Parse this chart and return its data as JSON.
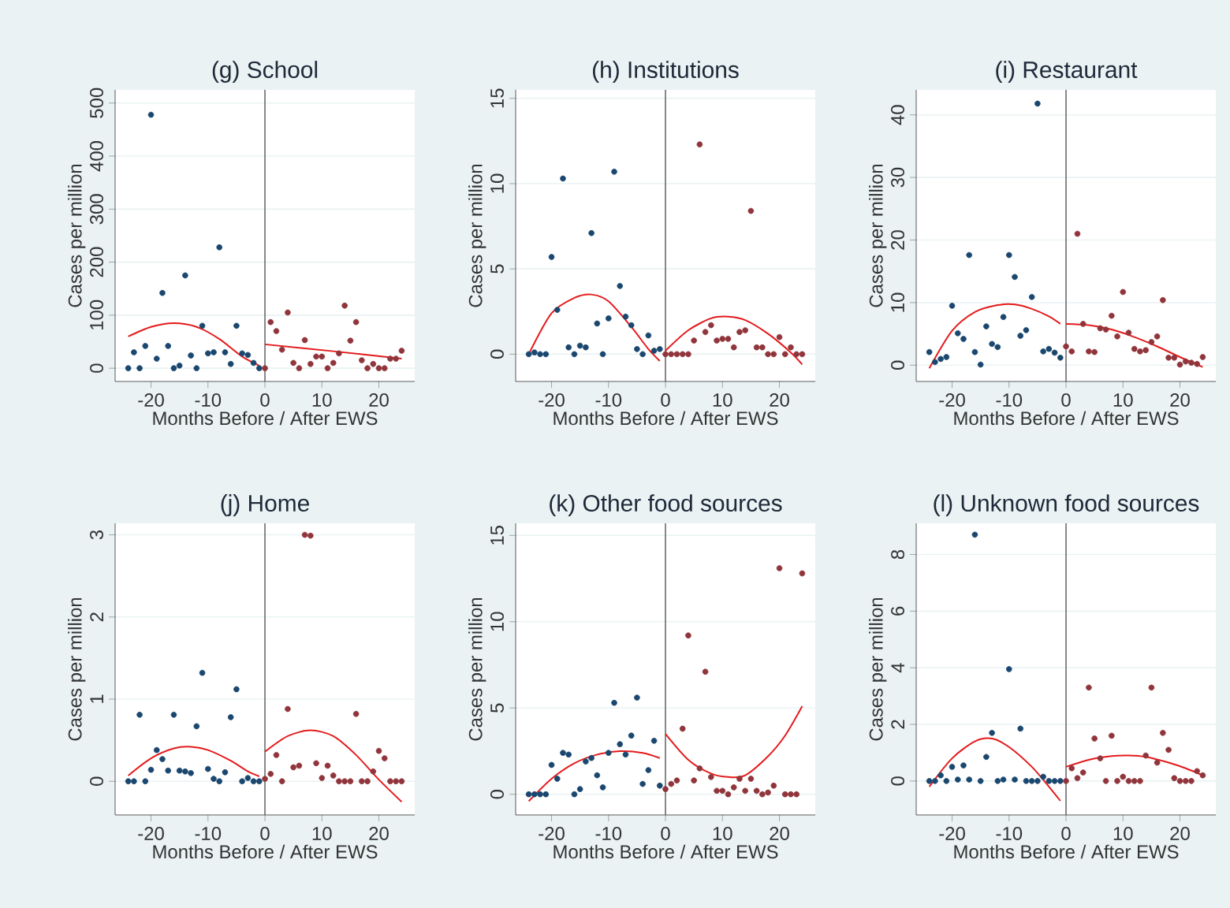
{
  "chart_data": [
    {
      "type": "scatter",
      "title": "(g) School",
      "xlabel": "Months Before / After EWS",
      "ylabel": "Cases per million",
      "xlim": [
        -26.3,
        26.3
      ],
      "xticks": [
        -20,
        -10,
        0,
        10,
        20
      ],
      "ylim": [
        -25,
        525
      ],
      "yticks": [
        0,
        100,
        200,
        300,
        400,
        500
      ],
      "grid": "y",
      "marker": "circle",
      "ref_lines": [
        {
          "axis": "x",
          "value": 0,
          "color": "#555555"
        }
      ],
      "series": [
        {
          "color": "#1a476f",
          "x": [
            -24,
            -23,
            -22,
            -21,
            -20,
            -19,
            -18,
            -17,
            -16,
            -15,
            -14,
            -13,
            -12,
            -11,
            -10,
            -9,
            -8,
            -7,
            -6,
            -5,
            -4,
            -3,
            -2,
            -1
          ],
          "values": [
            0,
            30,
            0,
            42,
            478,
            18,
            142,
            42,
            0,
            5,
            175,
            24,
            0,
            80,
            28,
            30,
            228,
            30,
            8,
            80,
            28,
            25,
            10,
            0
          ]
        },
        {
          "color": "#90353b",
          "x": [
            0,
            1,
            2,
            3,
            4,
            5,
            6,
            7,
            8,
            9,
            10,
            11,
            12,
            13,
            14,
            15,
            16,
            17,
            18,
            19,
            20,
            21,
            22,
            23,
            24
          ],
          "values": [
            0,
            87,
            70,
            35,
            105,
            10,
            0,
            53,
            8,
            22,
            22,
            0,
            10,
            28,
            118,
            52,
            87,
            15,
            0,
            8,
            0,
            0,
            18,
            18,
            33
          ]
        },
        {
          "type": "line",
          "marker": "none",
          "color": "#e41a1c",
          "x": [
            -24,
            -20,
            -16,
            -12,
            -8,
            -4,
            -1
          ],
          "values": [
            60,
            78,
            85,
            78,
            55,
            22,
            5
          ]
        },
        {
          "type": "line",
          "marker": "none",
          "color": "#e41a1c",
          "x": [
            0,
            12,
            24
          ],
          "values": [
            45,
            32,
            18
          ]
        }
      ]
    },
    {
      "type": "scatter",
      "title": "(h) Institutions",
      "xlabel": "Months Before / After EWS",
      "ylabel": "Cases per million",
      "xlim": [
        -26.3,
        26.3
      ],
      "xticks": [
        -20,
        -10,
        0,
        10,
        20
      ],
      "ylim": [
        -1.6,
        15.5
      ],
      "yticks": [
        0,
        5,
        10,
        15
      ],
      "grid": "y",
      "marker": "circle",
      "ref_lines": [
        {
          "axis": "x",
          "value": 0,
          "color": "#555555"
        }
      ],
      "series": [
        {
          "color": "#1a476f",
          "x": [
            -24,
            -23,
            -22,
            -21,
            -20,
            -19,
            -18,
            -17,
            -16,
            -15,
            -14,
            -13,
            -12,
            -11,
            -10,
            -9,
            -8,
            -7,
            -6,
            -5,
            -4,
            -3,
            -2,
            -1
          ],
          "values": [
            0,
            0.1,
            0,
            0,
            5.7,
            2.6,
            10.3,
            0.4,
            0,
            0.5,
            0.4,
            7.1,
            1.8,
            0,
            2.1,
            10.7,
            4.0,
            2.2,
            1.7,
            0.3,
            0,
            1.1,
            0.2,
            0.3
          ]
        },
        {
          "color": "#90353b",
          "x": [
            0,
            1,
            2,
            3,
            4,
            5,
            6,
            7,
            8,
            9,
            10,
            11,
            12,
            13,
            14,
            15,
            16,
            17,
            18,
            19,
            20,
            21,
            22,
            23,
            24
          ],
          "values": [
            0,
            0,
            0,
            0,
            0,
            0.8,
            12.3,
            1.3,
            1.7,
            0.8,
            0.9,
            0.9,
            0.4,
            1.3,
            1.4,
            8.4,
            0.4,
            0.4,
            0,
            0,
            1.0,
            0,
            0.4,
            0,
            0
          ]
        },
        {
          "type": "line",
          "marker": "none",
          "color": "#e41a1c",
          "x": [
            -24,
            -20,
            -16,
            -13,
            -10,
            -6,
            -3,
            -1
          ],
          "values": [
            0,
            2.4,
            3.3,
            3.5,
            3.1,
            1.6,
            0.3,
            -0.4
          ]
        },
        {
          "type": "line",
          "marker": "none",
          "color": "#e41a1c",
          "x": [
            0,
            4,
            8,
            11,
            14,
            18,
            22,
            24
          ],
          "values": [
            0.2,
            1.4,
            2.1,
            2.2,
            2.0,
            1.2,
            0.1,
            -0.6
          ]
        }
      ]
    },
    {
      "type": "scatter",
      "title": "(i) Restaurant",
      "xlabel": "Months Before / After EWS",
      "ylabel": "Cases per million",
      "xlim": [
        -26.3,
        26.3
      ],
      "xticks": [
        -20,
        -10,
        0,
        10,
        20
      ],
      "ylim": [
        -2.6,
        44
      ],
      "yticks": [
        0,
        10,
        20,
        30,
        40
      ],
      "grid": "y",
      "marker": "circle",
      "ref_lines": [
        {
          "axis": "x",
          "value": 0,
          "color": "#555555"
        }
      ],
      "series": [
        {
          "color": "#1a476f",
          "x": [
            -24,
            -23,
            -22,
            -21,
            -20,
            -19,
            -18,
            -17,
            -16,
            -15,
            -14,
            -13,
            -12,
            -11,
            -10,
            -9,
            -8,
            -7,
            -6,
            -5,
            -4,
            -3,
            -2,
            -1
          ],
          "values": [
            2.1,
            0.5,
            1.0,
            1.3,
            9.5,
            5.1,
            4.2,
            17.6,
            2.1,
            0.1,
            6.2,
            3.4,
            2.9,
            7.7,
            17.6,
            14.1,
            4.7,
            5.6,
            10.9,
            41.8,
            2.2,
            2.6,
            2.0,
            1.2
          ]
        },
        {
          "color": "#90353b",
          "x": [
            0,
            1,
            2,
            3,
            4,
            5,
            6,
            7,
            8,
            9,
            10,
            11,
            12,
            13,
            14,
            15,
            16,
            17,
            18,
            19,
            20,
            21,
            22,
            23,
            24
          ],
          "values": [
            3.0,
            2.2,
            21.0,
            6.6,
            2.2,
            2.1,
            5.9,
            5.7,
            7.9,
            4.6,
            11.7,
            5.2,
            2.6,
            2.2,
            2.4,
            3.7,
            4.6,
            10.4,
            1.2,
            1.2,
            0.1,
            0.6,
            0.4,
            0.2,
            1.3
          ]
        },
        {
          "type": "line",
          "marker": "none",
          "color": "#e41a1c",
          "x": [
            -24,
            -20,
            -16,
            -12,
            -9,
            -6,
            -3,
            -1
          ],
          "values": [
            -0.5,
            5.5,
            8.5,
            9.6,
            9.7,
            9.0,
            7.8,
            6.6
          ]
        },
        {
          "type": "line",
          "marker": "none",
          "color": "#e41a1c",
          "x": [
            0,
            4,
            8,
            12,
            16,
            20,
            24
          ],
          "values": [
            6.6,
            6.4,
            5.7,
            4.5,
            3.0,
            1.3,
            -0.3
          ]
        }
      ]
    },
    {
      "type": "scatter",
      "title": "(j) Home",
      "xlabel": "Months Before / After EWS",
      "ylabel": "Cases per million",
      "xlim": [
        -26.3,
        26.3
      ],
      "xticks": [
        -20,
        -10,
        0,
        10,
        20
      ],
      "ylim": [
        -0.41,
        3.14
      ],
      "yticks": [
        0,
        1,
        2,
        3
      ],
      "grid": "y",
      "marker": "circle",
      "ref_lines": [
        {
          "axis": "x",
          "value": 0,
          "color": "#555555"
        }
      ],
      "series": [
        {
          "color": "#1a476f",
          "x": [
            -24,
            -23,
            -22,
            -21,
            -20,
            -19,
            -18,
            -17,
            -16,
            -15,
            -14,
            -13,
            -12,
            -11,
            -10,
            -9,
            -8,
            -7,
            -6,
            -5,
            -4,
            -3,
            -2,
            -1
          ],
          "values": [
            0,
            0,
            0.81,
            0,
            0.14,
            0.38,
            0.27,
            0.13,
            0.81,
            0.13,
            0.12,
            0.1,
            0.67,
            1.32,
            0.15,
            0.03,
            0,
            0.11,
            0.78,
            1.12,
            0,
            0.04,
            0,
            0
          ]
        },
        {
          "color": "#90353b",
          "x": [
            0,
            1,
            2,
            3,
            4,
            5,
            6,
            7,
            8,
            9,
            10,
            11,
            12,
            13,
            14,
            15,
            16,
            17,
            18,
            19,
            20,
            21,
            22,
            23,
            24
          ],
          "values": [
            0.03,
            0.09,
            0.32,
            0,
            0.88,
            0.17,
            0.19,
            3.0,
            2.99,
            0.22,
            0.04,
            0.19,
            0.07,
            0,
            0,
            0,
            0.82,
            0,
            0,
            0.12,
            0.37,
            0.28,
            0,
            0,
            0
          ]
        },
        {
          "type": "line",
          "marker": "none",
          "color": "#e41a1c",
          "x": [
            -24,
            -20,
            -16,
            -13,
            -10,
            -6,
            -3,
            -1
          ],
          "values": [
            0.07,
            0.28,
            0.4,
            0.42,
            0.38,
            0.25,
            0.12,
            0.06
          ]
        },
        {
          "type": "line",
          "marker": "none",
          "color": "#e41a1c",
          "x": [
            0,
            4,
            8,
            12,
            16,
            20,
            24
          ],
          "values": [
            0.36,
            0.55,
            0.62,
            0.55,
            0.32,
            0.02,
            -0.25
          ]
        }
      ]
    },
    {
      "type": "scatter",
      "title": "(k) Other food sources",
      "xlabel": "Months Before / After EWS",
      "ylabel": "Cases per million",
      "xlim": [
        -26.3,
        26.3
      ],
      "xticks": [
        -20,
        -10,
        0,
        10,
        20
      ],
      "ylim": [
        -1.2,
        15.7
      ],
      "yticks": [
        0,
        5,
        10,
        15
      ],
      "grid": "y",
      "marker": "circle",
      "ref_lines": [
        {
          "axis": "x",
          "value": 0,
          "color": "#555555"
        }
      ],
      "series": [
        {
          "color": "#1a476f",
          "x": [
            -24,
            -23,
            -22,
            -21,
            -20,
            -19,
            -18,
            -17,
            -16,
            -15,
            -14,
            -13,
            -12,
            -11,
            -10,
            -9,
            -8,
            -7,
            -6,
            -5,
            -4,
            -3,
            -2,
            -1
          ],
          "values": [
            0,
            0,
            0,
            0,
            1.7,
            0.9,
            2.4,
            2.3,
            0,
            0.3,
            1.9,
            2.1,
            1.1,
            0.4,
            2.4,
            5.3,
            2.9,
            2.3,
            3.4,
            5.6,
            0.6,
            1.4,
            3.1,
            0.5
          ]
        },
        {
          "color": "#90353b",
          "x": [
            0,
            1,
            2,
            3,
            4,
            5,
            6,
            7,
            8,
            9,
            10,
            11,
            12,
            13,
            14,
            15,
            16,
            17,
            18,
            19,
            20,
            21,
            22,
            23,
            24
          ],
          "values": [
            0.3,
            0.6,
            0.8,
            3.8,
            9.2,
            0.8,
            1.5,
            7.1,
            1.0,
            0.2,
            0.2,
            0,
            0.4,
            0.9,
            0.2,
            0.9,
            0.2,
            0,
            0.1,
            0.5,
            13.1,
            0,
            0,
            0,
            12.8
          ]
        },
        {
          "type": "line",
          "marker": "none",
          "color": "#e41a1c",
          "x": [
            -24,
            -20,
            -16,
            -12,
            -8,
            -4,
            -1
          ],
          "values": [
            -0.4,
            0.9,
            1.8,
            2.3,
            2.5,
            2.4,
            2.1
          ]
        },
        {
          "type": "line",
          "marker": "none",
          "color": "#e41a1c",
          "x": [
            0,
            4,
            8,
            11,
            14,
            18,
            21,
            24
          ],
          "values": [
            3.5,
            2.0,
            1.2,
            1.0,
            1.1,
            2.2,
            3.4,
            5.1
          ]
        }
      ]
    },
    {
      "type": "scatter",
      "title": "(l) Unknown food sources",
      "xlabel": "Months Before / After EWS",
      "ylabel": "Cases per million",
      "xlim": [
        -26.3,
        26.3
      ],
      "xticks": [
        -20,
        -10,
        0,
        10,
        20
      ],
      "ylim": [
        -1.2,
        9.1
      ],
      "yticks": [
        0,
        2,
        4,
        6,
        8
      ],
      "grid": "y",
      "marker": "circle",
      "ref_lines": [
        {
          "axis": "x",
          "value": 0,
          "color": "#555555"
        }
      ],
      "series": [
        {
          "color": "#1a476f",
          "x": [
            -24,
            -23,
            -22,
            -21,
            -20,
            -19,
            -18,
            -17,
            -16,
            -15,
            -14,
            -13,
            -12,
            -11,
            -10,
            -9,
            -8,
            -7,
            -6,
            -5,
            -4,
            -3,
            -2,
            -1
          ],
          "values": [
            0,
            0,
            0.2,
            0,
            0.5,
            0.05,
            0.55,
            0.05,
            8.7,
            0,
            0.85,
            1.7,
            0,
            0.05,
            3.95,
            0.05,
            1.85,
            0,
            0,
            0,
            0.15,
            0,
            0,
            0
          ]
        },
        {
          "color": "#90353b",
          "x": [
            0,
            1,
            2,
            3,
            4,
            5,
            6,
            7,
            8,
            9,
            10,
            11,
            12,
            13,
            14,
            15,
            16,
            17,
            18,
            19,
            20,
            21,
            22,
            23,
            24
          ],
          "values": [
            0,
            0.45,
            0.1,
            0.3,
            3.3,
            1.5,
            0.8,
            0,
            1.6,
            0,
            0.15,
            0,
            0,
            0,
            0.9,
            3.3,
            0.65,
            1.7,
            1.1,
            0.1,
            0,
            0,
            0,
            0.35,
            0.2
          ]
        },
        {
          "type": "line",
          "marker": "none",
          "color": "#e41a1c",
          "x": [
            -24,
            -20,
            -16,
            -13,
            -10,
            -6,
            -3,
            -1
          ],
          "values": [
            -0.2,
            0.8,
            1.4,
            1.5,
            1.2,
            0.5,
            -0.2,
            -0.7
          ]
        },
        {
          "type": "line",
          "marker": "none",
          "color": "#e41a1c",
          "x": [
            0,
            4,
            8,
            11,
            14,
            18,
            21,
            24
          ],
          "values": [
            0.5,
            0.75,
            0.88,
            0.9,
            0.85,
            0.65,
            0.45,
            0.2
          ]
        }
      ]
    }
  ]
}
